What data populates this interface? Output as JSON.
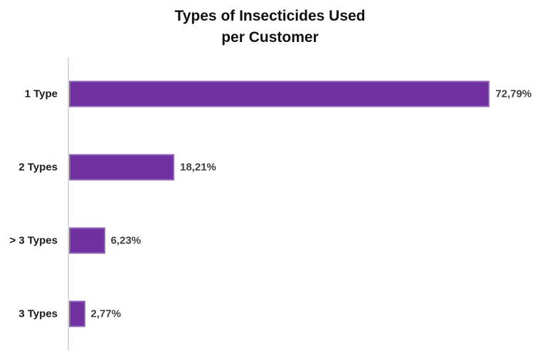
{
  "chart_data": {
    "type": "bar",
    "orientation": "horizontal",
    "title_line1": "Types of Insecticides Used",
    "title_line2": "per Customer",
    "categories": [
      "1 Type",
      "2 Types",
      "> 3 Types",
      "3 Types"
    ],
    "values": [
      72.79,
      18.21,
      6.23,
      2.77
    ],
    "value_labels": [
      "72,79%",
      "18,21%",
      "6,23%",
      "2,77%"
    ],
    "xlabel": "",
    "ylabel": "",
    "xlim": [
      0,
      80
    ],
    "grid": false,
    "legend": false,
    "colors": {
      "bar_fill": "#7030A0",
      "bar_border": "#9166b8",
      "axis_line": "#dcdcdc",
      "title_text": "#111111",
      "category_text": "#1a1a1a",
      "value_text": "#3f3f3f",
      "background": "#ffffff"
    }
  }
}
